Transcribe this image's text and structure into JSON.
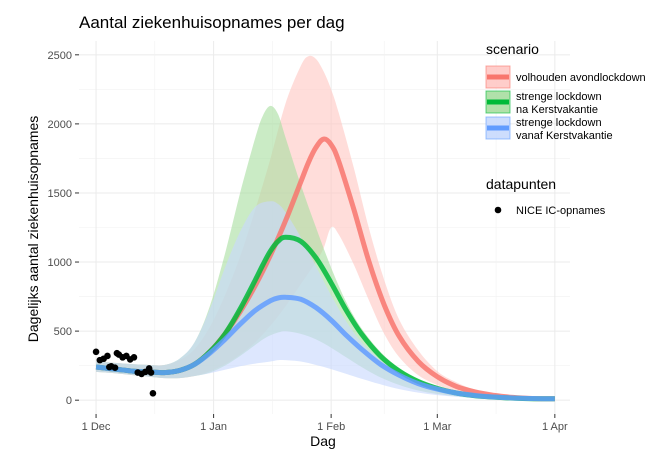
{
  "chart_data": {
    "type": "line",
    "title": "Aantal ziekenhuisopnames per dag",
    "xlabel": "Dag",
    "ylabel": "Dagelijks aantal ziekenhuisopnames",
    "x_ticks": [
      "1 Dec",
      "1 Jan",
      "1 Feb",
      "1 Mar",
      "1 Apr"
    ],
    "x_tick_days": [
      0,
      31,
      62,
      90,
      121
    ],
    "y_ticks": [
      0,
      500,
      1000,
      1500,
      2000,
      2500
    ],
    "xlim": [
      -4.5,
      125
    ],
    "ylim": [
      -100,
      2600
    ],
    "grid": true,
    "legend_position": "right",
    "legend_titles": {
      "scenario": "scenario",
      "points": "datapunten"
    },
    "series": [
      {
        "name": "volhouden avondlockdown",
        "color": "#f8766d",
        "fill": "#ffc8c4",
        "x": [
          0,
          5,
          10,
          14,
          18,
          22,
          26,
          30,
          34,
          38,
          42,
          46,
          50,
          54,
          56,
          58,
          60,
          62,
          64,
          68,
          72,
          76,
          80,
          85,
          90,
          95,
          100,
          105,
          110,
          115,
          121
        ],
        "mean": [
          240,
          225,
          210,
          205,
          200,
          215,
          260,
          350,
          480,
          640,
          830,
          1050,
          1300,
          1580,
          1720,
          1830,
          1890,
          1850,
          1730,
          1380,
          1000,
          690,
          460,
          280,
          170,
          100,
          60,
          35,
          20,
          12,
          10
        ],
        "upper": [
          280,
          270,
          260,
          255,
          255,
          290,
          370,
          530,
          760,
          1040,
          1380,
          1750,
          2150,
          2420,
          2490,
          2470,
          2380,
          2250,
          2080,
          1680,
          1240,
          870,
          580,
          360,
          210,
          130,
          75,
          45,
          28,
          18,
          15
        ],
        "lower": [
          205,
          195,
          180,
          170,
          160,
          160,
          175,
          210,
          260,
          330,
          420,
          540,
          680,
          840,
          920,
          1000,
          1100,
          1250,
          1200,
          980,
          720,
          480,
          310,
          180,
          110,
          65,
          40,
          25,
          15,
          10,
          8
        ]
      },
      {
        "name": "strenge lockdown\n na Kerstvakantie",
        "color": "#00ba38",
        "fill": "#a9dea1",
        "x": [
          0,
          5,
          10,
          14,
          18,
          22,
          26,
          30,
          34,
          38,
          42,
          44,
          46,
          48,
          50,
          54,
          58,
          62,
          66,
          70,
          75,
          80,
          85,
          90,
          95,
          100,
          105,
          110,
          115,
          121
        ],
        "mean": [
          240,
          225,
          210,
          205,
          200,
          215,
          260,
          350,
          480,
          660,
          870,
          980,
          1080,
          1150,
          1180,
          1150,
          1030,
          850,
          650,
          480,
          320,
          210,
          135,
          85,
          52,
          32,
          22,
          15,
          11,
          10
        ],
        "upper": [
          280,
          270,
          260,
          255,
          255,
          300,
          420,
          680,
          1060,
          1500,
          1900,
          2060,
          2130,
          2070,
          1900,
          1560,
          1250,
          960,
          710,
          520,
          350,
          230,
          150,
          95,
          60,
          38,
          25,
          17,
          12,
          11
        ],
        "lower": [
          205,
          195,
          180,
          170,
          160,
          160,
          175,
          200,
          250,
          320,
          400,
          440,
          470,
          490,
          500,
          480,
          440,
          380,
          310,
          240,
          165,
          110,
          70,
          45,
          28,
          18,
          12,
          9,
          7,
          6
        ]
      },
      {
        "name": "strenge lockdown\n vanaf Kerstvakantie",
        "color": "#619cff",
        "fill": "#c8d9fd",
        "x": [
          0,
          5,
          10,
          14,
          18,
          22,
          26,
          30,
          34,
          38,
          42,
          46,
          48,
          50,
          54,
          58,
          62,
          66,
          70,
          75,
          80,
          85,
          90,
          95,
          100,
          105,
          110,
          115,
          121
        ],
        "mean": [
          240,
          225,
          210,
          205,
          200,
          215,
          260,
          340,
          440,
          550,
          650,
          720,
          740,
          745,
          730,
          670,
          580,
          470,
          370,
          260,
          180,
          120,
          80,
          52,
          34,
          23,
          16,
          12,
          10
        ],
        "upper": [
          280,
          270,
          260,
          255,
          255,
          300,
          420,
          660,
          960,
          1220,
          1400,
          1440,
          1420,
          1360,
          1180,
          970,
          760,
          570,
          420,
          290,
          195,
          130,
          85,
          55,
          36,
          24,
          17,
          13,
          11
        ],
        "lower": [
          205,
          195,
          180,
          170,
          160,
          160,
          175,
          195,
          220,
          245,
          265,
          280,
          290,
          290,
          280,
          255,
          225,
          190,
          155,
          115,
          80,
          55,
          37,
          25,
          17,
          12,
          9,
          7,
          6
        ]
      }
    ],
    "points": {
      "name": "NICE IC-opnames",
      "color": "#000000",
      "x": [
        0,
        1,
        2,
        3,
        3.5,
        4,
        5,
        5.5,
        6,
        7,
        8,
        9,
        10,
        11,
        12,
        13,
        14
      ],
      "y": [
        350,
        290,
        300,
        320,
        240,
        245,
        235,
        340,
        330,
        310,
        320,
        295,
        310,
        200,
        190,
        205,
        230
      ],
      "extra_x": [
        14.5,
        15
      ],
      "extra_y": [
        200,
        50
      ]
    }
  }
}
